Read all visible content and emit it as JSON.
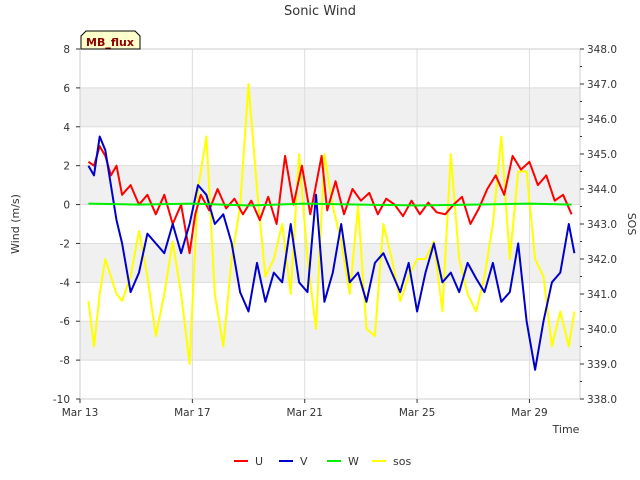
{
  "chart_data": {
    "type": "line",
    "title": "Sonic Wind",
    "badge": "MB_flux",
    "xlabel": "Time",
    "ylabel": "Wind (m/s)",
    "y2label": "SOS",
    "xlim": [
      0,
      17.8
    ],
    "ylim": [
      -10,
      8
    ],
    "y2lim": [
      338.0,
      348.0
    ],
    "x_ticks": [
      {
        "value": 0,
        "label": "Mar 13"
      },
      {
        "value": 4,
        "label": "Mar 17"
      },
      {
        "value": 8,
        "label": "Mar 21"
      },
      {
        "value": 12,
        "label": "Mar 25"
      },
      {
        "value": 16,
        "label": "Mar 29"
      }
    ],
    "y_ticks": [
      -10,
      -8,
      -6,
      -4,
      -2,
      0,
      2,
      4,
      6,
      8
    ],
    "y2_ticks": [
      338.0,
      339.0,
      340.0,
      341.0,
      342.0,
      343.0,
      344.0,
      345.0,
      346.0,
      347.0,
      348.0
    ],
    "legend": [
      "U",
      "V",
      "W",
      "sos"
    ],
    "colors": {
      "U": "#ff0000",
      "V": "#0000cc",
      "W": "#00ee00",
      "sos": "#ffff00",
      "band": "#f0f0f0",
      "grid": "#dddddd",
      "badge_bg": "#ffffcc"
    },
    "series": [
      {
        "name": "U",
        "axis": "left",
        "x": [
          0.3,
          0.5,
          0.7,
          0.9,
          1.1,
          1.3,
          1.5,
          1.8,
          2.1,
          2.4,
          2.7,
          3.0,
          3.3,
          3.6,
          3.9,
          4.1,
          4.3,
          4.6,
          4.9,
          5.2,
          5.5,
          5.8,
          6.1,
          6.4,
          6.7,
          7.0,
          7.3,
          7.6,
          7.9,
          8.2,
          8.4,
          8.6,
          8.8,
          9.1,
          9.4,
          9.7,
          10.0,
          10.3,
          10.6,
          10.9,
          11.2,
          11.5,
          11.8,
          12.1,
          12.4,
          12.7,
          13.0,
          13.3,
          13.6,
          13.9,
          14.2,
          14.5,
          14.8,
          15.1,
          15.4,
          15.7,
          16.0,
          16.3,
          16.6,
          16.9,
          17.2,
          17.5
        ],
        "y": [
          2.2,
          2.0,
          3.0,
          2.5,
          1.5,
          2.0,
          0.5,
          1.0,
          0.0,
          0.5,
          -0.5,
          0.5,
          -1.0,
          0.0,
          -2.5,
          -0.5,
          0.5,
          -0.3,
          0.8,
          -0.2,
          0.3,
          -0.5,
          0.2,
          -0.8,
          0.4,
          -1.0,
          2.5,
          0.0,
          2.0,
          -0.5,
          1.0,
          2.5,
          -0.3,
          1.2,
          -0.5,
          0.8,
          0.2,
          0.6,
          -0.5,
          0.3,
          0.0,
          -0.6,
          0.2,
          -0.5,
          0.1,
          -0.4,
          -0.5,
          0.0,
          0.4,
          -1.0,
          -0.2,
          0.8,
          1.5,
          0.5,
          2.5,
          1.8,
          2.2,
          1.0,
          1.5,
          0.2,
          0.5,
          -0.5
        ]
      },
      {
        "name": "V",
        "axis": "left",
        "x": [
          0.3,
          0.5,
          0.7,
          0.9,
          1.1,
          1.3,
          1.5,
          1.8,
          2.1,
          2.4,
          2.7,
          3.0,
          3.3,
          3.6,
          3.9,
          4.2,
          4.5,
          4.8,
          5.1,
          5.4,
          5.7,
          6.0,
          6.3,
          6.6,
          6.9,
          7.2,
          7.5,
          7.8,
          8.1,
          8.4,
          8.7,
          9.0,
          9.3,
          9.6,
          9.9,
          10.2,
          10.5,
          10.8,
          11.1,
          11.4,
          11.7,
          12.0,
          12.3,
          12.6,
          12.9,
          13.2,
          13.5,
          13.8,
          14.1,
          14.4,
          14.7,
          15.0,
          15.3,
          15.6,
          15.9,
          16.2,
          16.5,
          16.8,
          17.1,
          17.4,
          17.6
        ],
        "y": [
          2.0,
          1.5,
          3.5,
          2.8,
          1.0,
          -0.8,
          -2.0,
          -4.5,
          -3.5,
          -1.5,
          -2.0,
          -2.5,
          -1.0,
          -2.5,
          -1.0,
          1.0,
          0.5,
          -1.0,
          -0.5,
          -2.0,
          -4.5,
          -5.5,
          -3.0,
          -5.0,
          -3.5,
          -4.0,
          -1.0,
          -4.0,
          -4.5,
          0.5,
          -5.0,
          -3.5,
          -1.0,
          -4.0,
          -3.5,
          -5.0,
          -3.0,
          -2.5,
          -3.5,
          -4.5,
          -3.0,
          -5.5,
          -3.5,
          -2.0,
          -4.0,
          -3.5,
          -4.5,
          -3.0,
          -3.8,
          -4.5,
          -3.0,
          -5.0,
          -4.5,
          -2.0,
          -6.0,
          -8.5,
          -6.0,
          -4.0,
          -3.5,
          -1.0,
          -2.5
        ]
      },
      {
        "name": "W",
        "axis": "left",
        "x": [
          0.3,
          2.0,
          4.0,
          6.0,
          8.0,
          10.0,
          12.0,
          14.0,
          16.0,
          17.5
        ],
        "y": [
          0.05,
          0.0,
          0.05,
          -0.05,
          0.05,
          0.0,
          -0.05,
          0.0,
          0.05,
          0.0
        ]
      },
      {
        "name": "sos",
        "axis": "right",
        "x": [
          0.3,
          0.5,
          0.7,
          0.9,
          1.1,
          1.3,
          1.5,
          1.8,
          2.1,
          2.4,
          2.7,
          3.0,
          3.3,
          3.6,
          3.9,
          4.2,
          4.5,
          4.8,
          5.1,
          5.4,
          5.7,
          6.0,
          6.3,
          6.6,
          6.9,
          7.2,
          7.5,
          7.8,
          8.1,
          8.4,
          8.7,
          9.0,
          9.3,
          9.6,
          9.9,
          10.2,
          10.5,
          10.8,
          11.1,
          11.4,
          11.7,
          12.0,
          12.3,
          12.6,
          12.9,
          13.2,
          13.5,
          13.8,
          14.1,
          14.4,
          14.7,
          15.0,
          15.3,
          15.6,
          15.9,
          16.2,
          16.5,
          16.8,
          17.1,
          17.4,
          17.6
        ],
        "y": [
          340.8,
          339.5,
          341.0,
          342.0,
          341.5,
          341.0,
          340.8,
          341.5,
          342.8,
          341.5,
          339.8,
          341.0,
          342.5,
          341.0,
          339.0,
          344.0,
          345.5,
          341.0,
          339.5,
          342.0,
          343.5,
          347.0,
          344.0,
          341.5,
          342.0,
          343.0,
          341.0,
          345.0,
          342.0,
          340.0,
          345.0,
          343.5,
          342.5,
          341.0,
          343.5,
          340.0,
          339.8,
          343.0,
          342.0,
          340.8,
          341.5,
          342.0,
          342.0,
          342.5,
          340.5,
          345.0,
          342.0,
          341.0,
          340.5,
          341.5,
          343.0,
          345.5,
          342.0,
          344.5,
          344.5,
          342.0,
          341.5,
          339.5,
          340.5,
          339.5,
          340.5
        ]
      }
    ]
  }
}
